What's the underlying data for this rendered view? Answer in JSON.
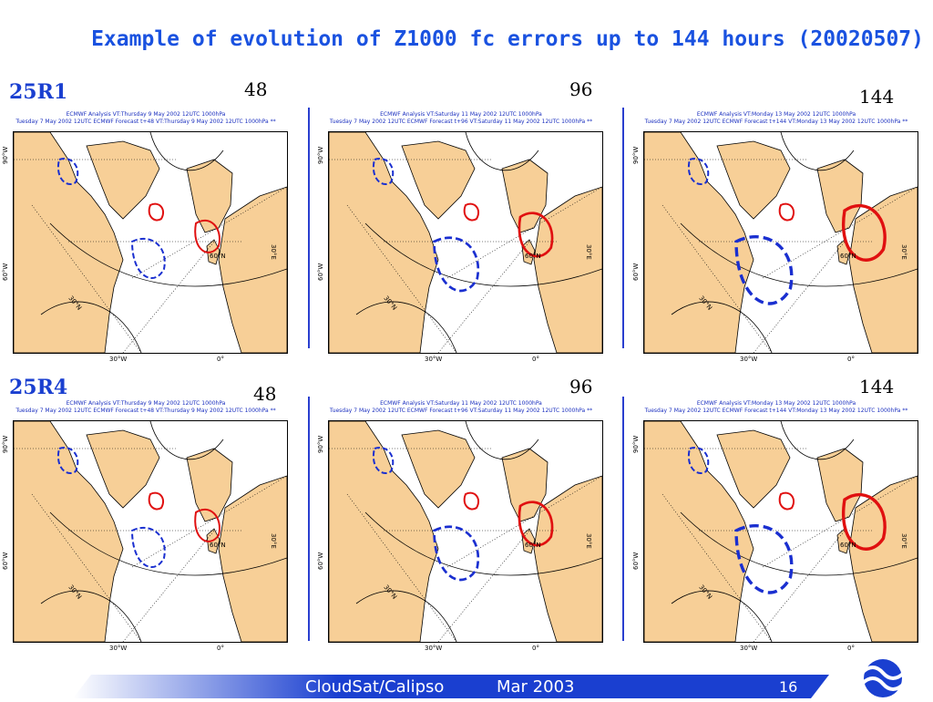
{
  "title": "Example of evolution of Z1000 fc errors up to 144 hours (20020507)",
  "rows": [
    {
      "label": "25R1",
      "hours": [
        "48",
        "96",
        "144"
      ]
    },
    {
      "label": "25R4",
      "hours": [
        "48",
        "96",
        "144"
      ]
    }
  ],
  "panels": [
    {
      "line1": "ECMWF Analysis VT:Thursday 9 May 2002 12UTC 1000hPa",
      "line2": "Tuesday 7 May 2002 12UTC ECMWF Forecast t+48 VT:Thursday 9 May 2002 12UTC 1000hPa **"
    },
    {
      "line1": "ECMWF Analysis VT:Saturday 11 May 2002 12UTC 1000hPa",
      "line2": "Tuesday 7 May 2002 12UTC ECMWF Forecast t+96 VT:Saturday 11 May 2002 12UTC 1000hPa **"
    },
    {
      "line1": "ECMWF Analysis VT:Monday 13 May 2002 12UTC 1000hPa",
      "line2": "Tuesday 7 May 2002 12UTC ECMWF Forecast t+144 VT:Monday 13 May 2002 12UTC 1000hPa **"
    }
  ],
  "map_labels": {
    "lon_90w": "90°W",
    "lon_60w": "60°W",
    "lon_30w": "30°W",
    "lon_0": "0°",
    "lon_30e": "30°E",
    "lat_30n": "30°N",
    "lat_60n": "60°N"
  },
  "footer": {
    "event": "CloudSat/Calipso",
    "date": "Mar 2003",
    "page": "16"
  },
  "colors": {
    "title": "#1a52e0",
    "land": "#f7cf97",
    "positive_error": "#e01010",
    "negative_error": "#1a2fd0",
    "footer_bar": "#1a3fd0"
  }
}
